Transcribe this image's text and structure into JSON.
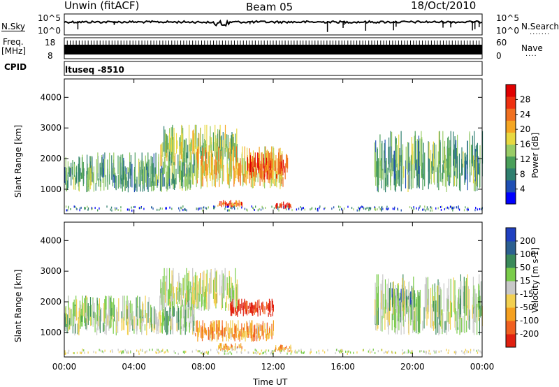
{
  "header": {
    "station": "Unwin (fitACF)",
    "beam": "Beam 05",
    "date": "18/Oct/2010"
  },
  "ops_panel": {
    "nsky_label": "N.Sky",
    "nsky_top_tick": "10^5",
    "nsky_bottom_tick": "10^0",
    "nsearch_label": "N.Search",
    "nsearch_top_tick": "10^5",
    "nsearch_bottom_tick": "10^0",
    "freq_label_1": "Freq.",
    "freq_label_2": "[MHz]",
    "freq_top_tick": "18",
    "freq_bottom_tick": "8",
    "nave_label": "Nave",
    "nave_top_tick": "60",
    "nave_bottom_tick": "0",
    "cpid_label": "CPID",
    "cpid_value": "ltuseq -8510"
  },
  "chart_data": [
    {
      "type": "heatmap",
      "panel": "power",
      "ylabel": "Slant Range [km]",
      "yticks": [
        "1000",
        "2000",
        "3000",
        "4000"
      ],
      "ylim": [
        200,
        4600
      ],
      "xlim_hours": [
        0,
        24
      ],
      "colorbar": {
        "label": "Power [dB]",
        "ticks": [
          "4",
          "8",
          "12",
          "16",
          "20",
          "24",
          "28"
        ],
        "range": [
          0,
          32
        ],
        "colors": [
          "#0000ff",
          "#1f4fb4",
          "#2f7f6f",
          "#4a9f5a",
          "#99cc66",
          "#e8d840",
          "#f5a623",
          "#f07020",
          "#ee3010",
          "#e00000"
        ]
      },
      "features": [
        {
          "t0": 0.0,
          "t1": 7.5,
          "r0": 900,
          "r1": 2200,
          "level": 0.35
        },
        {
          "t0": 5.5,
          "t1": 10.0,
          "r0": 1700,
          "r1": 3100,
          "level": 0.45
        },
        {
          "t0": 7.5,
          "t1": 12.6,
          "r0": 1000,
          "r1": 2400,
          "level": 0.6
        },
        {
          "t0": 10.5,
          "t1": 12.9,
          "r0": 1300,
          "r1": 2200,
          "level": 0.8
        },
        {
          "t0": 8.8,
          "t1": 10.2,
          "r0": 400,
          "r1": 650,
          "level": 0.75
        },
        {
          "t0": 12.1,
          "t1": 13.0,
          "r0": 350,
          "r1": 600,
          "level": 0.9
        },
        {
          "t0": 17.8,
          "t1": 24.0,
          "r0": 900,
          "r1": 2900,
          "level": 0.35
        }
      ]
    },
    {
      "type": "heatmap",
      "panel": "velocity",
      "ylabel": "Slant Range [km]",
      "yticks": [
        "1000",
        "2000",
        "3000",
        "4000"
      ],
      "ylim": [
        200,
        4600
      ],
      "xlim_hours": [
        0,
        24
      ],
      "xlabel": "Time UT",
      "xticks": [
        "00:00",
        "04:00",
        "08:00",
        "12:00",
        "16:00",
        "20:00",
        "00:00"
      ],
      "colorbar": {
        "label": "Velocity [m s-1]",
        "ticks": [
          "200",
          "100",
          "50",
          "15",
          "-15",
          "-50",
          "-100",
          "-200"
        ],
        "range": [
          -250,
          250
        ],
        "colors": [
          "#2040c0",
          "#2c6090",
          "#3a8a5a",
          "#7acc4a",
          "#c8c8c8",
          "#f2d050",
          "#f5a020",
          "#f06020",
          "#e02010"
        ]
      },
      "features": [
        {
          "t0": 0.0,
          "t1": 7.5,
          "r0": 900,
          "r1": 2200,
          "level": 0.45
        },
        {
          "t0": 5.5,
          "t1": 10.0,
          "r0": 1700,
          "r1": 3100,
          "level": 0.5
        },
        {
          "t0": 7.5,
          "t1": 12.0,
          "r0": 700,
          "r1": 1400,
          "level": 0.7
        },
        {
          "t0": 9.5,
          "t1": 12.0,
          "r0": 1500,
          "r1": 2100,
          "level": 0.95
        },
        {
          "t0": 8.8,
          "t1": 10.2,
          "r0": 400,
          "r1": 650,
          "level": 0.7
        },
        {
          "t0": 12.1,
          "t1": 13.0,
          "r0": 350,
          "r1": 600,
          "level": 0.72
        },
        {
          "t0": 18.8,
          "t1": 20.0,
          "r0": 1800,
          "r1": 2500,
          "level": 0.1
        },
        {
          "t0": 17.8,
          "t1": 24.0,
          "r0": 900,
          "r1": 2900,
          "level": 0.45
        }
      ]
    }
  ]
}
